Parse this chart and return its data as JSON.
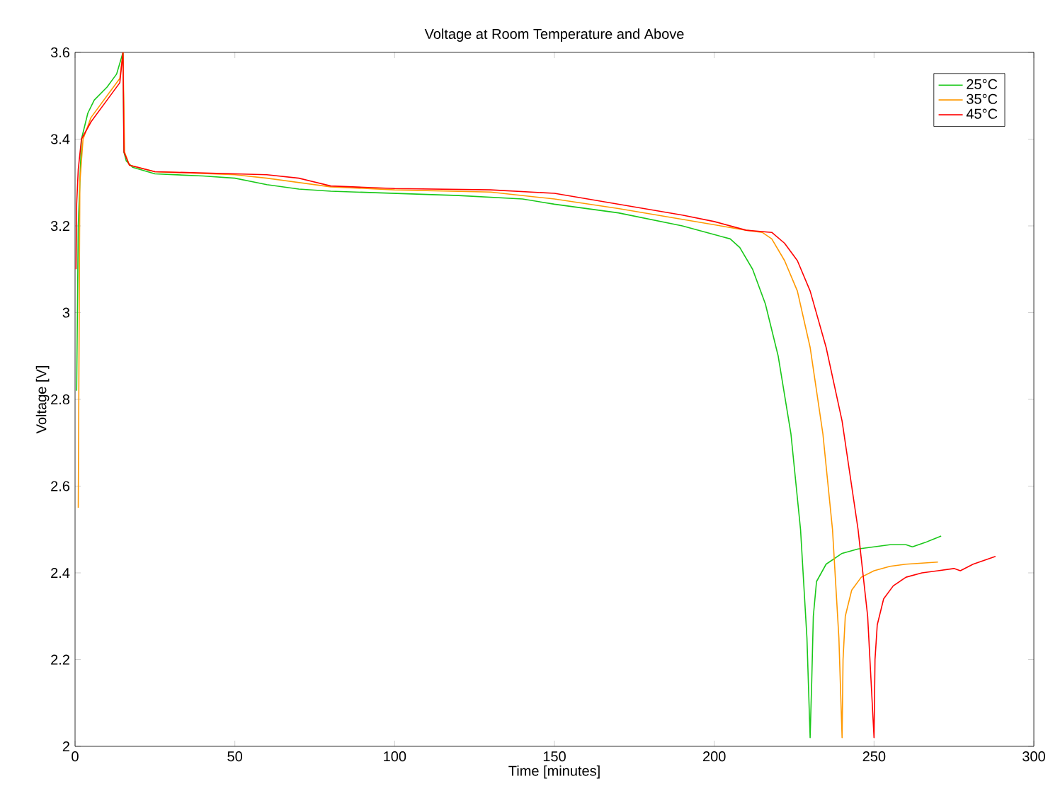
{
  "chart_data": {
    "type": "line",
    "title": "Voltage at Room Temperature and Above",
    "xlabel": "Time [minutes]",
    "ylabel": "Voltage [V]",
    "xlim": [
      0,
      300
    ],
    "ylim": [
      2,
      3.6
    ],
    "xticks": [
      0,
      50,
      100,
      150,
      200,
      250,
      300
    ],
    "yticks": [
      2,
      2.2,
      2.4,
      2.6,
      2.8,
      3,
      3.2,
      3.4,
      3.6
    ],
    "legend": "top right",
    "marker": "none",
    "line_style": "solid",
    "series": [
      {
        "name": "25°C",
        "color": "#19c819",
        "x": [
          0.5,
          1,
          2,
          4,
          6,
          10,
          13,
          15,
          15.3,
          16,
          18,
          25,
          40,
          50,
          60,
          70,
          80,
          100,
          120,
          140,
          150,
          170,
          190,
          200,
          205,
          208,
          212,
          216,
          220,
          224,
          227,
          229,
          230,
          230.5,
          231,
          232,
          235,
          240,
          245,
          250,
          255,
          260,
          262,
          266,
          271
        ],
        "values": [
          2.82,
          3.2,
          3.4,
          3.46,
          3.49,
          3.52,
          3.55,
          3.6,
          3.37,
          3.35,
          3.335,
          3.32,
          3.315,
          3.31,
          3.295,
          3.285,
          3.28,
          3.275,
          3.27,
          3.262,
          3.25,
          3.23,
          3.2,
          3.18,
          3.17,
          3.15,
          3.1,
          3.02,
          2.9,
          2.72,
          2.5,
          2.25,
          2.02,
          2.15,
          2.3,
          2.38,
          2.42,
          2.445,
          2.455,
          2.46,
          2.465,
          2.465,
          2.46,
          2.47,
          2.485
        ]
      },
      {
        "name": "35°C",
        "color": "#ff9900",
        "x": [
          1,
          1.5,
          2.5,
          5,
          10,
          14,
          15,
          15.5,
          17,
          25,
          50,
          60,
          70,
          80,
          100,
          130,
          150,
          170,
          190,
          210,
          215,
          218,
          222,
          226,
          230,
          234,
          237,
          239,
          240,
          240.3,
          241,
          243,
          246,
          250,
          255,
          260,
          270
        ],
        "values": [
          2.55,
          3.3,
          3.4,
          3.45,
          3.5,
          3.54,
          3.6,
          3.37,
          3.34,
          3.325,
          3.318,
          3.31,
          3.3,
          3.29,
          3.283,
          3.278,
          3.262,
          3.24,
          3.215,
          3.19,
          3.185,
          3.17,
          3.12,
          3.05,
          2.92,
          2.72,
          2.5,
          2.25,
          2.02,
          2.2,
          2.3,
          2.36,
          2.39,
          2.405,
          2.415,
          2.42,
          2.425
        ]
      },
      {
        "name": "45°C",
        "color": "#ff0000",
        "x": [
          0.3,
          0.5,
          1,
          2,
          5,
          10,
          14,
          15,
          15.3,
          17,
          25,
          50,
          60,
          70,
          80,
          100,
          130,
          150,
          170,
          190,
          200,
          210,
          218,
          222,
          226,
          230,
          235,
          240,
          245,
          248,
          250,
          250.3,
          251,
          253,
          256,
          260,
          265,
          270,
          275,
          277,
          281,
          288
        ],
        "values": [
          3.1,
          3.25,
          3.33,
          3.4,
          3.44,
          3.49,
          3.53,
          3.6,
          3.37,
          3.34,
          3.325,
          3.32,
          3.318,
          3.31,
          3.292,
          3.286,
          3.283,
          3.275,
          3.25,
          3.225,
          3.21,
          3.19,
          3.185,
          3.16,
          3.12,
          3.05,
          2.92,
          2.75,
          2.5,
          2.3,
          2.02,
          2.2,
          2.28,
          2.34,
          2.37,
          2.39,
          2.4,
          2.405,
          2.41,
          2.405,
          2.42,
          2.438
        ]
      }
    ]
  }
}
